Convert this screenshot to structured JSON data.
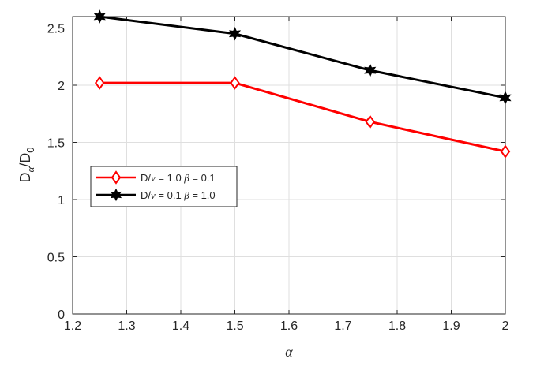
{
  "chart_data": {
    "type": "line",
    "x": [
      1.25,
      1.5,
      1.75,
      2.0
    ],
    "series": [
      {
        "name_parts": [
          "D/",
          "ν",
          " = 1.0 ",
          "β",
          " = 0.1"
        ],
        "values": [
          2.02,
          2.02,
          1.68,
          1.42
        ],
        "color": "#ff0000",
        "marker": "diamond"
      },
      {
        "name_parts": [
          "D/",
          "ν",
          " = 0.1 ",
          "β",
          " = 1.0"
        ],
        "values": [
          2.6,
          2.45,
          2.13,
          1.89
        ],
        "color": "#000000",
        "marker": "hexagram"
      }
    ],
    "xlabel": "α",
    "ylabel_parts": [
      "D",
      "α",
      "/D",
      "0"
    ],
    "xlim": [
      1.2,
      2.0
    ],
    "ylim": [
      0,
      2.6
    ],
    "xticks": [
      "1.2",
      "1.3",
      "1.4",
      "1.5",
      "1.6",
      "1.7",
      "1.8",
      "1.9",
      "2"
    ],
    "yticks": [
      "0",
      "0.5",
      "1",
      "1.5",
      "2",
      "2.5"
    ],
    "grid": true,
    "legend_position": "middle-left"
  }
}
